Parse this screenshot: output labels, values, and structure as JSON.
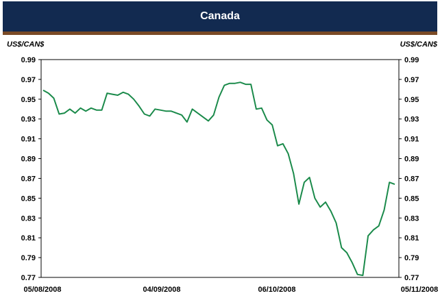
{
  "header": {
    "title": "Canada"
  },
  "chart_data": {
    "type": "line",
    "title": "Canada",
    "ylabel_left": "US$/CAN$",
    "ylabel_right": "US$/CAN$",
    "ylim": [
      0.77,
      0.99
    ],
    "yticks": [
      "0.99",
      "0.97",
      "0.95",
      "0.93",
      "0.91",
      "0.89",
      "0.87",
      "0.85",
      "0.83",
      "0.81",
      "0.79",
      "0.77"
    ],
    "xticks": [
      "05/08/2008",
      "04/09/2008",
      "06/10/2008",
      "05/11/2008"
    ],
    "line_color": "#1a8a4a",
    "series": [
      {
        "values": [
          0.959,
          0.956,
          0.951,
          0.935,
          0.936,
          0.94,
          0.936,
          0.941,
          0.938,
          0.941,
          0.939,
          0.939,
          0.956,
          0.955,
          0.954,
          0.957,
          0.955,
          0.95,
          0.943,
          0.935,
          0.933,
          0.94,
          0.939,
          0.938,
          0.938,
          0.936,
          0.934,
          0.927,
          0.94,
          0.936,
          0.932,
          0.928,
          0.934,
          0.952,
          0.964,
          0.966,
          0.966,
          0.967,
          0.965,
          0.965,
          0.94,
          0.941,
          0.929,
          0.924,
          0.903,
          0.905,
          0.895,
          0.875,
          0.844,
          0.866,
          0.871,
          0.85,
          0.841,
          0.846,
          0.837,
          0.825,
          0.8,
          0.795,
          0.785,
          0.773,
          0.772,
          0.812,
          0.818,
          0.822,
          0.838,
          0.866,
          0.864
        ]
      }
    ]
  }
}
